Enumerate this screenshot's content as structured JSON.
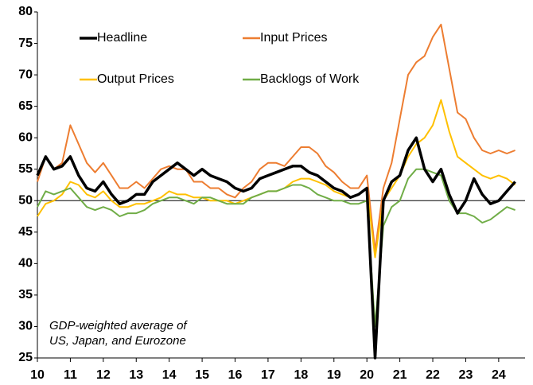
{
  "chart_data": {
    "type": "line",
    "annotation": [
      "GDP-weighted average of",
      "US, Japan, and Eurozone"
    ],
    "x": [
      10,
      10.25,
      10.5,
      10.75,
      11,
      11.25,
      11.5,
      11.75,
      12,
      12.25,
      12.5,
      12.75,
      13,
      13.25,
      13.5,
      13.75,
      14,
      14.25,
      14.5,
      14.75,
      15,
      15.25,
      15.5,
      15.75,
      16,
      16.25,
      16.5,
      16.75,
      17,
      17.25,
      17.5,
      17.75,
      18,
      18.25,
      18.5,
      18.75,
      19,
      19.25,
      19.5,
      19.75,
      20,
      20.25,
      20.5,
      20.75,
      21,
      21.25,
      21.5,
      21.75,
      22,
      22.25,
      22.5,
      22.75,
      23,
      23.25,
      23.5,
      23.75,
      24,
      24.25,
      24.5
    ],
    "series": [
      {
        "name": "Headline",
        "color": "#000000",
        "values": [
          54,
          57,
          55,
          55.5,
          57,
          54,
          52,
          51.5,
          53,
          51,
          49.5,
          50,
          51,
          51,
          53,
          54,
          55,
          56,
          55,
          54,
          55,
          54,
          53.5,
          53,
          52,
          51.5,
          52,
          53.5,
          54,
          54.5,
          55,
          55.5,
          55.5,
          54.5,
          54,
          53,
          52,
          51.5,
          50.5,
          51,
          52,
          25,
          50,
          53,
          54,
          58,
          60,
          55,
          53,
          55,
          51,
          48,
          50,
          53.5,
          51,
          49.5,
          50,
          51.5,
          53
        ]
      },
      {
        "name": "Input Prices",
        "color": "#ed7d31",
        "values": [
          53,
          57,
          55,
          56,
          62,
          59,
          56,
          54.5,
          56,
          54,
          52,
          52,
          53,
          52,
          53.5,
          55,
          55.5,
          55,
          55,
          53,
          53,
          52,
          52,
          51,
          50.5,
          52,
          53,
          55,
          56,
          56,
          55.5,
          57,
          58.5,
          58.5,
          57.5,
          55.5,
          54.5,
          53,
          52,
          52,
          54,
          42,
          52,
          56,
          63,
          70,
          72,
          73,
          76,
          78,
          71,
          64,
          63,
          60,
          58,
          57.5,
          58,
          57.5,
          58
        ]
      },
      {
        "name": "Output Prices",
        "color": "#ffc000",
        "values": [
          47.5,
          49.5,
          50,
          51,
          53,
          52.5,
          51,
          50.5,
          51.5,
          50,
          49,
          49,
          49.5,
          49.5,
          50,
          50.5,
          51.5,
          51,
          51,
          50.5,
          50.5,
          50,
          50,
          50,
          49.5,
          50,
          50.5,
          51,
          51.5,
          51.5,
          52,
          53,
          53.5,
          53.5,
          53,
          52.5,
          51.5,
          51,
          50.5,
          51,
          52,
          41,
          50,
          52,
          54,
          57,
          59,
          60,
          62,
          66,
          61,
          57,
          56,
          55,
          54,
          53.5,
          54,
          53.5,
          52.5
        ]
      },
      {
        "name": "Backlogs of Work",
        "color": "#70ad47",
        "values": [
          49,
          51.5,
          51,
          51.5,
          52,
          50.5,
          49,
          48.5,
          49,
          48.5,
          47.5,
          48,
          48,
          48.5,
          49.5,
          50,
          50.5,
          50.5,
          50,
          49.5,
          50.5,
          50.5,
          50,
          49.5,
          49.5,
          49.5,
          50.5,
          51,
          51.5,
          51.5,
          52,
          52.5,
          52.5,
          52,
          51,
          50.5,
          50,
          50,
          49.5,
          49.5,
          50,
          30,
          46,
          49,
          50,
          53.5,
          55,
          55,
          54.5,
          54,
          50,
          48,
          48,
          47.5,
          46.5,
          47,
          48,
          49,
          48.5
        ]
      }
    ],
    "xlim": [
      10,
      24.8
    ],
    "xticks": [
      10,
      11,
      12,
      13,
      14,
      15,
      16,
      17,
      18,
      19,
      20,
      21,
      22,
      23,
      24
    ],
    "ylim": [
      25,
      80
    ],
    "yticks": [
      25,
      30,
      35,
      40,
      45,
      50,
      55,
      60,
      65,
      70,
      75,
      80
    ],
    "reference_line": 50
  }
}
